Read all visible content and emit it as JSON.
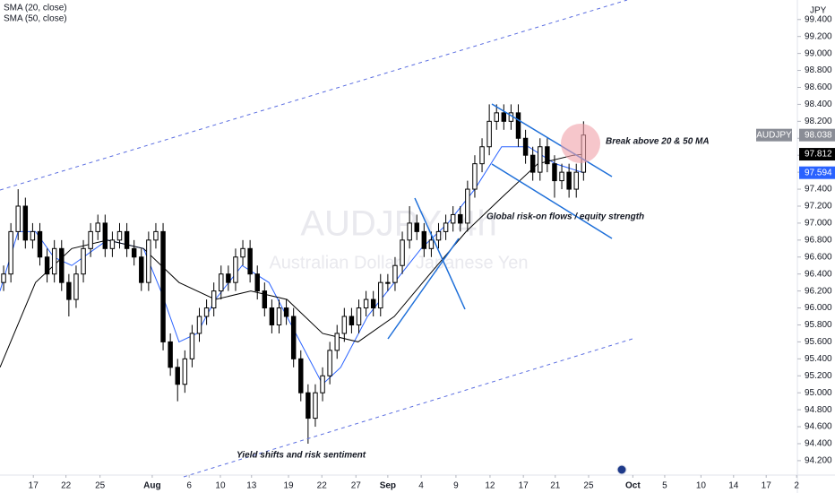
{
  "chart_data": {
    "type": "candlestick",
    "title": "AUDJPY, 4h",
    "subtitle": "Australian Dollar / Japanese Yen",
    "currency": "JPY",
    "xlim": [
      0,
      110
    ],
    "xticks": [
      {
        "value": 4.6,
        "label": "17"
      },
      {
        "value": 9.1,
        "label": "22"
      },
      {
        "value": 13.8,
        "label": "25"
      },
      {
        "value": 21,
        "label": "Aug"
      },
      {
        "value": 26.1,
        "label": "6"
      },
      {
        "value": 30.4,
        "label": "10"
      },
      {
        "value": 34.7,
        "label": "13"
      },
      {
        "value": 39.8,
        "label": "19"
      },
      {
        "value": 44.4,
        "label": "22"
      },
      {
        "value": 49.1,
        "label": "27"
      },
      {
        "value": 53.5,
        "label": "Sep"
      },
      {
        "value": 58.1,
        "label": "4"
      },
      {
        "value": 62.9,
        "label": "9"
      },
      {
        "value": 67.6,
        "label": "12"
      },
      {
        "value": 72.2,
        "label": "17"
      },
      {
        "value": 76.6,
        "label": "21"
      },
      {
        "value": 81.2,
        "label": "25"
      },
      {
        "value": 87.3,
        "label": "Oct"
      },
      {
        "value": 91.7,
        "label": "5"
      },
      {
        "value": 96.7,
        "label": "10"
      },
      {
        "value": 101.2,
        "label": "14"
      },
      {
        "value": 105.7,
        "label": "17"
      },
      {
        "value": 109.9,
        "label": "2"
      }
    ],
    "ylim": [
      94.03,
      99.63
    ],
    "yticks": [
      {
        "value": 94.2,
        "label": "94.200"
      },
      {
        "value": 94.4,
        "label": "94.400"
      },
      {
        "value": 94.6,
        "label": "94.600"
      },
      {
        "value": 94.8,
        "label": "94.800"
      },
      {
        "value": 95.0,
        "label": "95.000"
      },
      {
        "value": 95.2,
        "label": "95.200"
      },
      {
        "value": 95.4,
        "label": "95.400"
      },
      {
        "value": 95.6,
        "label": "95.600"
      },
      {
        "value": 95.8,
        "label": "95.800"
      },
      {
        "value": 96.0,
        "label": "96.000"
      },
      {
        "value": 96.2,
        "label": "96.200"
      },
      {
        "value": 96.4,
        "label": "96.400"
      },
      {
        "value": 96.6,
        "label": "96.600"
      },
      {
        "value": 96.8,
        "label": "96.800"
      },
      {
        "value": 97.0,
        "label": "97.000"
      },
      {
        "value": 97.2,
        "label": "97.200"
      },
      {
        "value": 97.4,
        "label": "97.400"
      },
      {
        "value": 97.6,
        "label": "97.600"
      },
      {
        "value": 97.8,
        "label": "97.800"
      },
      {
        "value": 98.0,
        "label": "98.000"
      },
      {
        "value": 98.2,
        "label": "98.200"
      },
      {
        "value": 98.4,
        "label": "98.400"
      },
      {
        "value": 98.6,
        "label": "98.600"
      },
      {
        "value": 98.8,
        "label": "98.800"
      },
      {
        "value": 99.0,
        "label": "99.000"
      },
      {
        "value": 99.2,
        "label": "99.200"
      },
      {
        "value": 99.4,
        "label": "99.400"
      }
    ],
    "candles": {
      "name": "AUDJPY",
      "up_color": "#ffffff",
      "down_color": "#000000",
      "last_value": 98.038,
      "open": [
        96.3,
        96.4,
        96.9,
        97.2,
        96.8,
        96.9,
        96.6,
        96.4,
        96.7,
        96.3,
        96.1,
        96.4,
        96.7,
        96.9,
        97.0,
        96.7,
        96.8,
        96.9,
        96.7,
        96.6,
        96.3,
        96.8,
        96.9,
        95.6,
        95.3,
        95.1,
        95.4,
        95.7,
        95.9,
        96.0,
        96.2,
        96.4,
        96.3,
        96.6,
        96.7,
        96.4,
        96.2,
        96.0,
        95.8,
        96.0,
        95.9,
        95.4,
        95.0,
        94.7,
        95.0,
        95.2,
        95.5,
        95.7,
        95.9,
        95.8,
        96.0,
        96.1,
        96.0,
        96.3,
        96.3,
        96.5,
        96.8,
        97.0,
        96.9,
        96.7,
        96.8,
        96.9,
        97.0,
        97.1,
        97.0,
        97.4,
        97.7,
        97.9,
        98.2,
        98.3,
        98.2,
        98.3,
        98.0,
        97.8,
        97.6,
        97.9,
        97.7,
        97.5,
        97.6,
        97.4,
        97.6
      ],
      "high": [
        96.5,
        97.0,
        97.4,
        97.3,
        97.0,
        97.0,
        96.7,
        96.8,
        96.8,
        96.4,
        96.5,
        96.8,
        97.0,
        97.1,
        97.1,
        96.9,
        97.0,
        97.0,
        96.8,
        96.7,
        96.9,
        97.0,
        97.0,
        95.7,
        95.4,
        95.5,
        95.8,
        96.0,
        96.1,
        96.3,
        96.5,
        96.5,
        96.7,
        96.8,
        96.8,
        96.5,
        96.3,
        96.1,
        96.1,
        96.1,
        96.0,
        95.5,
        95.1,
        95.1,
        95.3,
        95.6,
        95.8,
        96.0,
        96.0,
        96.1,
        96.2,
        96.2,
        96.4,
        96.4,
        96.6,
        96.9,
        97.2,
        97.1,
        97.0,
        96.9,
        97.0,
        97.1,
        97.2,
        97.2,
        97.5,
        97.8,
        98.0,
        98.4,
        98.4,
        98.4,
        98.4,
        98.4,
        98.1,
        97.9,
        98.0,
        98.0,
        97.8,
        97.7,
        97.7,
        97.7,
        98.2
      ],
      "low": [
        96.2,
        96.3,
        96.8,
        96.7,
        96.7,
        96.5,
        96.3,
        96.3,
        96.2,
        95.9,
        96.0,
        96.3,
        96.6,
        96.8,
        96.6,
        96.6,
        96.7,
        96.6,
        96.5,
        96.2,
        96.2,
        96.7,
        95.5,
        95.2,
        94.9,
        95.0,
        95.3,
        95.6,
        95.8,
        95.9,
        96.1,
        96.2,
        96.2,
        96.5,
        96.3,
        96.1,
        95.9,
        95.7,
        95.7,
        95.8,
        95.3,
        94.9,
        94.4,
        94.6,
        94.9,
        95.1,
        95.4,
        95.6,
        95.7,
        95.7,
        95.9,
        95.9,
        95.9,
        96.2,
        96.2,
        96.4,
        96.7,
        96.8,
        96.6,
        96.6,
        96.7,
        96.8,
        96.9,
        96.9,
        96.9,
        97.3,
        97.6,
        97.8,
        98.1,
        98.1,
        98.1,
        97.9,
        97.7,
        97.5,
        97.5,
        97.6,
        97.3,
        97.4,
        97.3,
        97.3,
        97.5
      ],
      "close": [
        96.4,
        96.9,
        97.2,
        96.8,
        96.9,
        96.6,
        96.4,
        96.7,
        96.3,
        96.1,
        96.4,
        96.7,
        96.9,
        97.0,
        96.7,
        96.8,
        96.9,
        96.7,
        96.6,
        96.3,
        96.8,
        96.9,
        95.6,
        95.3,
        95.1,
        95.4,
        95.7,
        95.9,
        96.0,
        96.2,
        96.4,
        96.3,
        96.6,
        96.7,
        96.4,
        96.2,
        96.0,
        95.8,
        96.0,
        95.9,
        95.4,
        95.0,
        94.7,
        95.0,
        95.2,
        95.5,
        95.7,
        95.9,
        95.8,
        96.0,
        96.1,
        96.0,
        96.3,
        96.3,
        96.5,
        96.8,
        97.0,
        96.9,
        96.7,
        96.8,
        96.9,
        97.0,
        97.1,
        97.0,
        97.4,
        97.7,
        97.9,
        98.2,
        98.3,
        98.2,
        98.3,
        98.0,
        97.8,
        97.6,
        97.9,
        97.7,
        97.5,
        97.6,
        97.4,
        97.6,
        98.038
      ]
    },
    "series": [
      {
        "name": "SMA (20, close)",
        "type": "line",
        "color": "#2962ff",
        "last_value": 97.594,
        "x": [
          0,
          2.5,
          4.9,
          7.4,
          9.9,
          14.8,
          19.8,
          22.2,
          24.7,
          27.2,
          29.7,
          33.4,
          37.1,
          40.8,
          44.5,
          47,
          50.7,
          54.4,
          58.1,
          61.8,
          65.5,
          69.2,
          72.9,
          76.6,
          80.5
        ],
        "values": [
          96.2,
          96.9,
          96.9,
          96.6,
          96.5,
          96.8,
          96.7,
          96.2,
          95.6,
          95.7,
          96.1,
          96.5,
          96.3,
          95.7,
          95.1,
          95.3,
          95.9,
          96.3,
          96.7,
          97.0,
          97.4,
          97.9,
          97.9,
          97.7,
          97.594
        ]
      },
      {
        "name": "SMA (50, close)",
        "type": "line",
        "color": "#000000",
        "last_value": 97.812,
        "x": [
          0,
          4.9,
          9.9,
          14.8,
          19.8,
          24.7,
          29.7,
          34.6,
          39.6,
          44.5,
          49.4,
          54.4,
          59.3,
          64.3,
          69.2,
          74.2,
          79.1,
          80.5
        ],
        "values": [
          95.3,
          96.3,
          96.7,
          96.8,
          96.7,
          96.3,
          96.1,
          96.2,
          96.1,
          95.7,
          95.6,
          95.9,
          96.4,
          96.9,
          97.3,
          97.7,
          97.8,
          97.812
        ]
      }
    ],
    "annotations": [
      "Break above 20 & 50 MA",
      "Global risk-on flows / equity strength",
      "Yield shifts and risk sentiment"
    ]
  }
}
